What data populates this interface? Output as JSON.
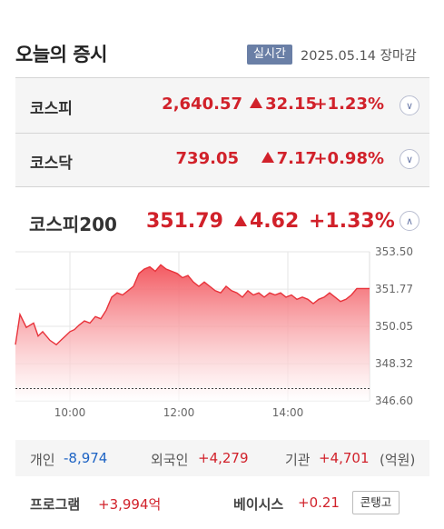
{
  "header": {
    "title": "오늘의 증시",
    "badge": "실시간",
    "date": "2025.05.14",
    "status": "장마감"
  },
  "indices": [
    {
      "name": "코스피",
      "value": "2,640.57",
      "change": "32.15",
      "percent": "+1.23%",
      "direction": "up"
    },
    {
      "name": "코스닥",
      "value": "739.05",
      "change": "7.17",
      "percent": "+0.98%",
      "direction": "up"
    }
  ],
  "featured": {
    "name": "코스피200",
    "value": "351.79",
    "change": "4.62",
    "percent": "+1.33%",
    "direction": "up"
  },
  "chart_data": {
    "type": "area",
    "x_tick_labels": [
      "10:00",
      "12:00",
      "14:00"
    ],
    "y_tick_labels": [
      "353.50",
      "351.77",
      "350.05",
      "348.32",
      "346.60"
    ],
    "ylim": [
      346.6,
      353.5
    ],
    "baseline": 347.17,
    "x_range_minutes": [
      540,
      930
    ],
    "series": [
      {
        "color": "#e8323a",
        "x": [
          540,
          545,
          552,
          560,
          565,
          570,
          578,
          585,
          590,
          595,
          600,
          605,
          610,
          616,
          622,
          628,
          634,
          640,
          646,
          652,
          658,
          664,
          670,
          676,
          682,
          688,
          694,
          700,
          706,
          712,
          718,
          724,
          730,
          736,
          742,
          748,
          754,
          760,
          766,
          772,
          778,
          784,
          790,
          796,
          802,
          808,
          814,
          820,
          826,
          832,
          838,
          844,
          850,
          856,
          862,
          868,
          874,
          880,
          886,
          892,
          898,
          904,
          910,
          916,
          922,
          930
        ],
        "y": [
          349.2,
          350.6,
          350.0,
          350.2,
          349.6,
          349.8,
          349.4,
          349.2,
          349.4,
          349.6,
          349.8,
          349.9,
          350.1,
          350.3,
          350.2,
          350.5,
          350.4,
          350.8,
          351.4,
          351.6,
          351.5,
          351.7,
          351.9,
          352.5,
          352.7,
          352.8,
          352.6,
          352.9,
          352.7,
          352.6,
          352.5,
          352.3,
          352.4,
          352.1,
          351.9,
          352.1,
          351.9,
          351.7,
          351.6,
          351.9,
          351.7,
          351.6,
          351.4,
          351.7,
          351.5,
          351.6,
          351.4,
          351.6,
          351.5,
          351.6,
          351.4,
          351.5,
          351.3,
          351.4,
          351.3,
          351.1,
          351.3,
          351.4,
          351.6,
          351.4,
          351.2,
          351.3,
          351.5,
          351.8,
          351.8,
          351.8
        ]
      }
    ]
  },
  "investors": {
    "individual_label": "개인",
    "individual_value": "-8,974",
    "foreign_label": "외국인",
    "foreign_value": "+4,279",
    "institution_label": "기관",
    "institution_value": "+4,701",
    "unit": "(억원)"
  },
  "program": {
    "label": "프로그램",
    "value": "+3,994억",
    "basis_label": "베이시스",
    "basis_value": "+0.21",
    "contango": "콘탱고"
  },
  "colors": {
    "up": "#d1212a",
    "down": "#1d63c4",
    "badge": "#6a7fa6"
  }
}
